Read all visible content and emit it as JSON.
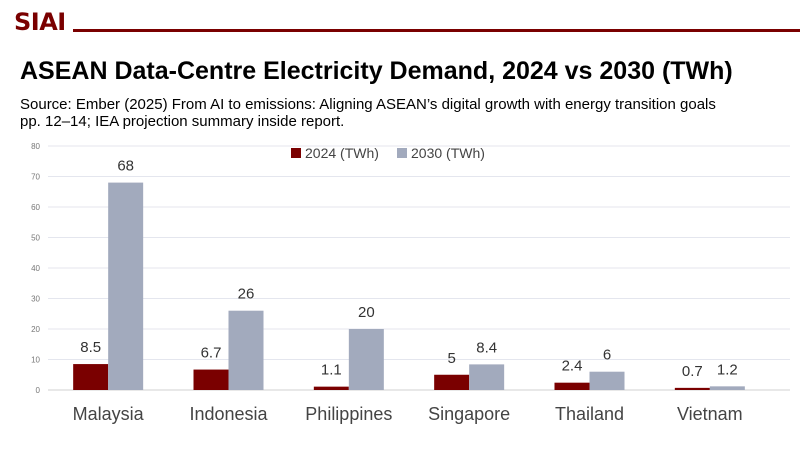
{
  "logo": "SIAI",
  "title": "ASEAN Data-Centre Electricity Demand, 2024 vs 2030 (TWh)",
  "subtitle": "Source: Ember (2025) From AI to emissions: Aligning ASEAN’s digital growth with energy transition goals pp. 12–14; IEA projection summary inside report.",
  "chart_data": {
    "type": "bar",
    "categories": [
      "Malaysia",
      "Indonesia",
      "Philippines",
      "Singapore",
      "Thailand",
      "Vietnam"
    ],
    "series": [
      {
        "name": "2024 (TWh)",
        "color": "#7a0000",
        "values": [
          8.5,
          6.7,
          1.1,
          5,
          2.4,
          0.7
        ]
      },
      {
        "name": "2030 (TWh)",
        "color": "#a2aabd",
        "values": [
          68,
          26,
          20,
          8.4,
          6,
          1.2
        ]
      }
    ],
    "ylim": [
      0,
      80
    ],
    "yticks": [
      0,
      10,
      20,
      30,
      40,
      50,
      60,
      70,
      80
    ],
    "grid": true,
    "legend": "top-center"
  }
}
